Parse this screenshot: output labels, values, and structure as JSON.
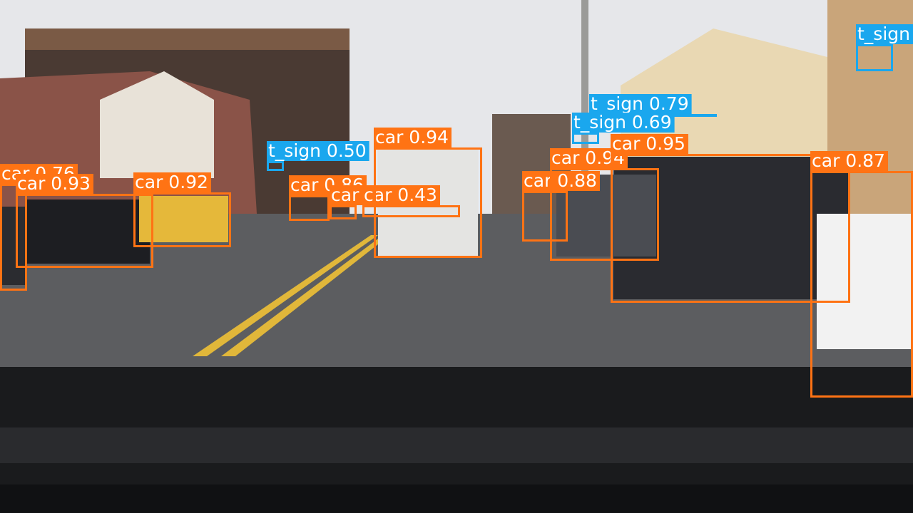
{
  "detections": [
    {
      "label": "car 0.76"
    },
    {
      "label": "car 0.93"
    },
    {
      "label": "car 0.92"
    },
    {
      "label": "car 0.86"
    },
    {
      "label": "car 0.48"
    },
    {
      "label": "car 0.43"
    },
    {
      "label": "car 0.94"
    },
    {
      "label": "car 0.88"
    },
    {
      "label": "car 0.94"
    },
    {
      "label": "car 0.95"
    },
    {
      "label": "car 0.87"
    },
    {
      "label": "t_sign 0.50"
    },
    {
      "label": "t_sign 0.79"
    },
    {
      "label": "t_sign 0.69"
    },
    {
      "label": "t_sign"
    }
  ]
}
